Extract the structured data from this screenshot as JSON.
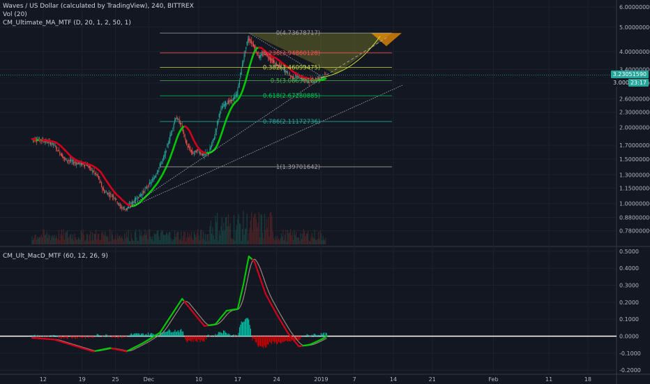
{
  "legend": {
    "symbol": "Waves / US Dollar (calculated by TradingView), 240, BITTREX",
    "vol": "Vol (20)",
    "ma_study": "CM_Ultimate_MA_MTF (D, 20, 1, 2, 50, 1)",
    "macd_study": "CM_Ult_MacD_MTF (60, 12, 26, 9)"
  },
  "price_tags": {
    "last": "3.23051590",
    "countdown": "23:17",
    "last_row2": "3.000"
  },
  "colors": {
    "background": "#131722",
    "bull_candle": "#26a69a",
    "bear_candle": "#ef5350",
    "ma_up": "#00c805",
    "ma_down": "#d0021b",
    "fib_0": "#9e9e9e",
    "fib_0236": "#ef5350",
    "fib_0382": "#cddc39",
    "fib_05": "#4caf50",
    "fib_0618": "#00c853",
    "fib_0786": "#26a69a",
    "fib_1": "#9e9e9e"
  },
  "chart_data": [
    {
      "type": "candlestick",
      "title": "Waves / US Dollar (calculated by TradingView), 240, BITTREX",
      "yscale": "log",
      "ylim": [
        0.68,
        6.4
      ],
      "y_ticks": [
        "6.00000000",
        "5.00000000",
        "4.00000000",
        "3.40000000",
        "3.00000000",
        "2.60000000",
        "2.30000000",
        "2.00000000",
        "1.70000000",
        "1.50000000",
        "1.30000000",
        "1.15000000",
        "1.00000000",
        "0.88000000",
        "0.78000000"
      ],
      "x_ticks": [
        "12",
        "19",
        "25",
        "Dec",
        "10",
        "17",
        "24",
        "2019",
        "7",
        "14",
        "21",
        "Feb",
        "11",
        "18"
      ],
      "daily_closes": [
        {
          "d": "Nov 10",
          "c": 1.8
        },
        {
          "d": "Nov 12",
          "c": 1.78
        },
        {
          "d": "Nov 14",
          "c": 1.72
        },
        {
          "d": "Nov 16",
          "c": 1.5
        },
        {
          "d": "Nov 18",
          "c": 1.45
        },
        {
          "d": "Nov 20",
          "c": 1.42
        },
        {
          "d": "Nov 22",
          "c": 1.28
        },
        {
          "d": "Nov 23",
          "c": 1.12
        },
        {
          "d": "Nov 25",
          "c": 1.06
        },
        {
          "d": "Nov 26",
          "c": 0.97
        },
        {
          "d": "Nov 27",
          "c": 0.95
        },
        {
          "d": "Nov 28",
          "c": 1.0
        },
        {
          "d": "Nov 30",
          "c": 1.1
        },
        {
          "d": "Dec 2",
          "c": 1.25
        },
        {
          "d": "Dec 4",
          "c": 1.55
        },
        {
          "d": "Dec 5",
          "c": 1.85
        },
        {
          "d": "Dec 6",
          "c": 2.2
        },
        {
          "d": "Dec 7",
          "c": 2.05
        },
        {
          "d": "Dec 8",
          "c": 1.7
        },
        {
          "d": "Dec 9",
          "c": 1.58
        },
        {
          "d": "Dec 10",
          "c": 1.62
        },
        {
          "d": "Dec 11",
          "c": 1.55
        },
        {
          "d": "Dec 12",
          "c": 1.6
        },
        {
          "d": "Dec 13",
          "c": 1.85
        },
        {
          "d": "Dec 14",
          "c": 2.35
        },
        {
          "d": "Dec 15",
          "c": 2.5
        },
        {
          "d": "Dec 16",
          "c": 2.55
        },
        {
          "d": "Dec 17",
          "c": 2.7
        },
        {
          "d": "Dec 18",
          "c": 3.6
        },
        {
          "d": "Dec 19",
          "c": 4.5
        },
        {
          "d": "Dec 20",
          "c": 4.25
        },
        {
          "d": "Dec 21",
          "c": 3.8
        },
        {
          "d": "Dec 22",
          "c": 3.95
        },
        {
          "d": "Dec 23",
          "c": 3.75
        },
        {
          "d": "Dec 24",
          "c": 3.55
        },
        {
          "d": "Dec 25",
          "c": 3.45
        },
        {
          "d": "Dec 26",
          "c": 3.3
        },
        {
          "d": "Dec 27",
          "c": 3.15
        },
        {
          "d": "Dec 28",
          "c": 3.2
        },
        {
          "d": "Dec 29",
          "c": 3.1
        },
        {
          "d": "Dec 30",
          "c": 3.05
        },
        {
          "d": "Dec 31",
          "c": 3.1
        },
        {
          "d": "Jan 1",
          "c": 3.15
        },
        {
          "d": "Jan 2",
          "c": 3.23
        }
      ],
      "fibonacci": [
        {
          "level": "0",
          "price": "4.73678717",
          "label": "0(4.73678717)"
        },
        {
          "level": "0.236",
          "price": "3.94860128",
          "label": "0.236(3.94860128)"
        },
        {
          "level": "0.382",
          "price": "3.46099475",
          "label": "0.382(3.46099475)"
        },
        {
          "level": "0.5",
          "price": "3.06690180",
          "label": "0.5(3.06690180)"
        },
        {
          "level": "0.618",
          "price": "2.67280885",
          "label": "0.618(2.67280885)"
        },
        {
          "level": "0.786",
          "price": "2.11172736",
          "label": "0.786(2.11172736)"
        },
        {
          "level": "1",
          "price": "1.39701642",
          "label": "1(1.39701642)"
        }
      ]
    },
    {
      "type": "line",
      "title": "CM_Ult_MacD_MTF (60, 12, 26, 9)",
      "ylim": [
        -0.22,
        0.52
      ],
      "y_ticks": [
        "0.5000",
        "0.4000",
        "0.3000",
        "0.2000",
        "0.1000",
        "0.0000",
        "-0.1000",
        "-0.2000"
      ],
      "series": [
        {
          "values": [
            {
              "d": "Nov 10",
              "v": -0.01
            },
            {
              "d": "Nov 14",
              "v": -0.02
            },
            {
              "d": "Nov 18",
              "v": -0.06
            },
            {
              "d": "Nov 21",
              "v": -0.09
            },
            {
              "d": "Nov 24",
              "v": -0.07
            },
            {
              "d": "Nov 27",
              "v": -0.09
            },
            {
              "d": "Nov 30",
              "v": -0.04
            },
            {
              "d": "Dec 3",
              "v": 0.02
            },
            {
              "d": "Dec 5",
              "v": 0.12
            },
            {
              "d": "Dec 7",
              "v": 0.22
            },
            {
              "d": "Dec 9",
              "v": 0.14
            },
            {
              "d": "Dec 11",
              "v": 0.06
            },
            {
              "d": "Dec 13",
              "v": 0.07
            },
            {
              "d": "Dec 15",
              "v": 0.15
            },
            {
              "d": "Dec 17",
              "v": 0.16
            },
            {
              "d": "Dec 18",
              "v": 0.3
            },
            {
              "d": "Dec 19",
              "v": 0.47
            },
            {
              "d": "Dec 20",
              "v": 0.44
            },
            {
              "d": "Dec 22",
              "v": 0.25
            },
            {
              "d": "Dec 24",
              "v": 0.13
            },
            {
              "d": "Dec 26",
              "v": 0.02
            },
            {
              "d": "Dec 28",
              "v": -0.06
            },
            {
              "d": "Dec 30",
              "v": -0.05
            },
            {
              "d": "Jan 1",
              "v": -0.02
            },
            {
              "d": "Jan 2",
              "v": 0.0
            }
          ]
        }
      ]
    }
  ]
}
